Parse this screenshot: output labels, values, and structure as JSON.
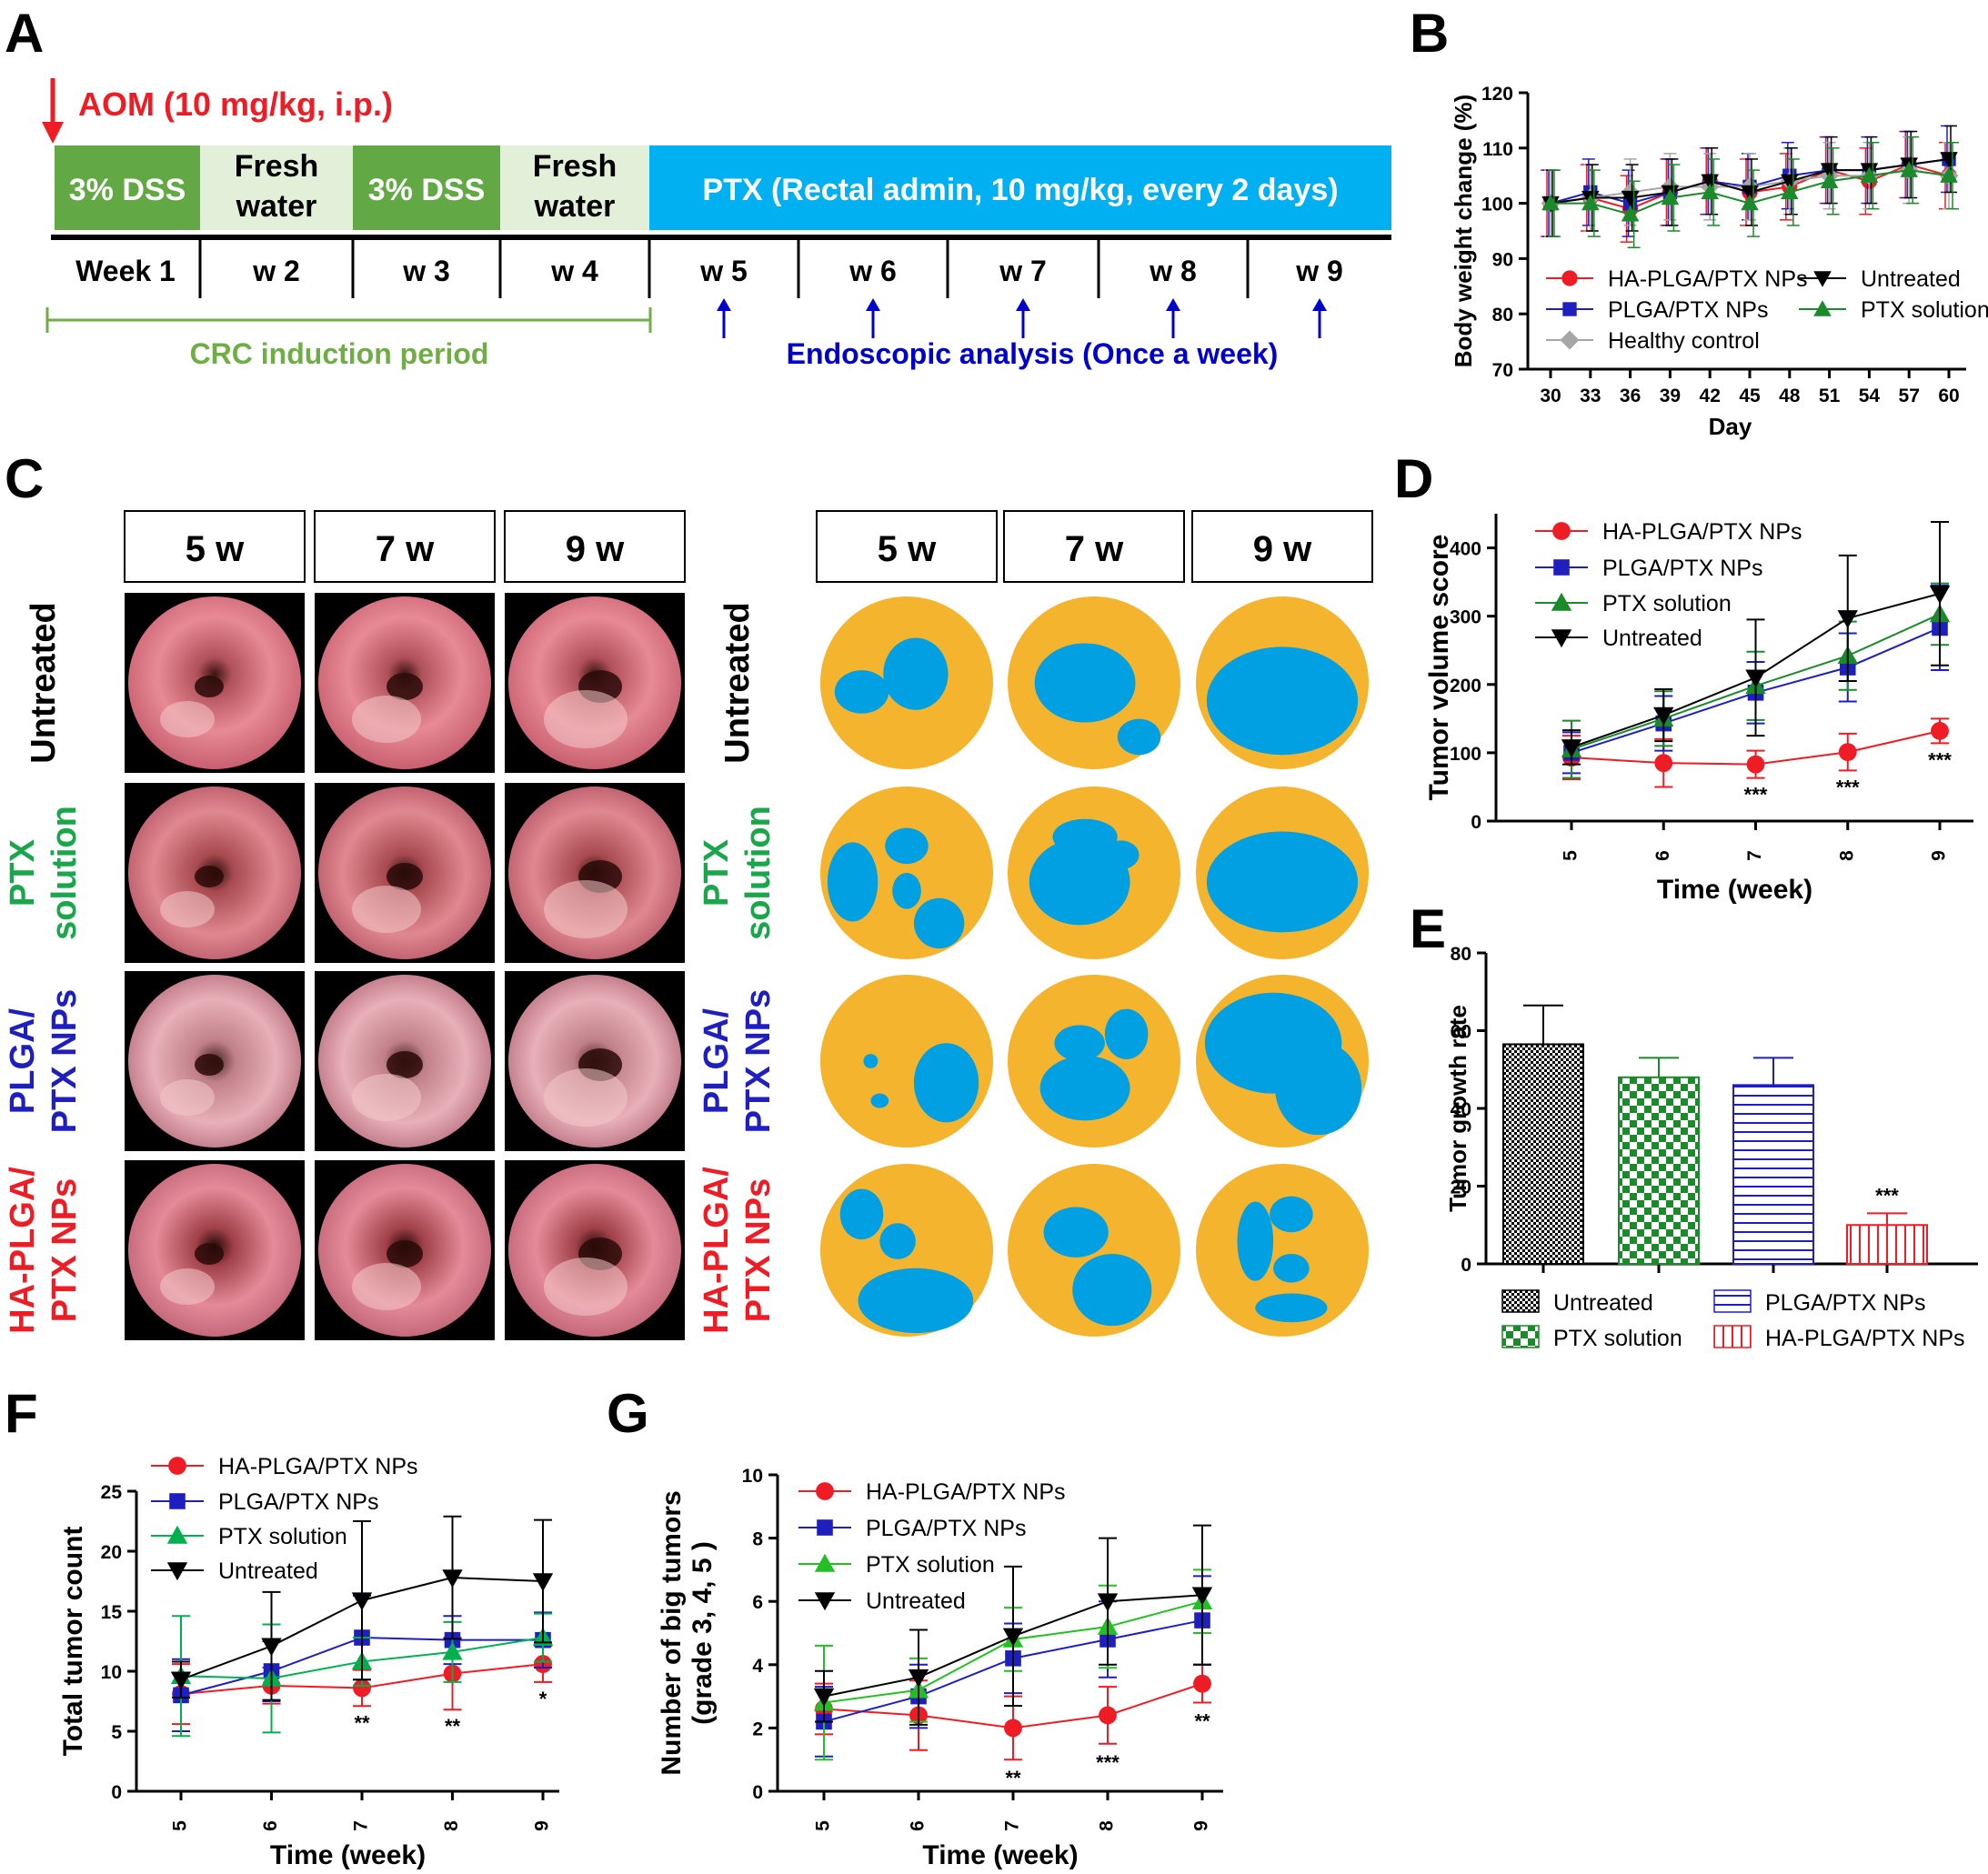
{
  "panels": {
    "A": "A",
    "B": "B",
    "C": "C",
    "D": "D",
    "E": "E",
    "F": "F",
    "G": "G"
  },
  "timeline": {
    "aom": "AOM (10 mg/kg, i.p.)",
    "bar1": "3% DSS",
    "bar2a": "Fresh",
    "bar2b": "water",
    "bar3": "3% DSS",
    "bar4a": "Fresh",
    "bar4b": "water",
    "bar5": "PTX (Rectal admin, 10 mg/kg, every 2 days)",
    "weeks": [
      "Week 1",
      "w 2",
      "w 3",
      "w 4",
      "w 5",
      "w 6",
      "w 7",
      "w 8",
      "w 9"
    ],
    "crc": "CRC induction period",
    "endo": "Endoscopic analysis (Once a week)",
    "colors": {
      "dss": "#62a844",
      "water": "#e2efd9",
      "ptx": "#00b0f0",
      "aom": "#ee1c24",
      "crc": "#70ad47",
      "endo": "#0000cc"
    }
  },
  "panel_c": {
    "time_headers": [
      "5 w",
      "7 w",
      "9 w"
    ],
    "rows": [
      {
        "lines": [
          "Untreated"
        ],
        "color": "#000000"
      },
      {
        "lines": [
          "PTX",
          "solution"
        ],
        "color": "#1aa64b"
      },
      {
        "lines": [
          "PLGA/",
          "PTX NPs"
        ],
        "color": "#1f1fbf"
      },
      {
        "lines": [
          "HA-PLGA/",
          "PTX NPs"
        ],
        "color": "#ee1c24"
      }
    ],
    "map_colors": {
      "background": "#f5b42e",
      "tumor": "#00a0e3"
    }
  },
  "chart_data": [
    {
      "id": "B",
      "type": "line",
      "xlabel": "Day",
      "ylabel": "Body weight change (%)",
      "x": [
        30,
        33,
        36,
        39,
        42,
        45,
        48,
        51,
        54,
        57,
        60
      ],
      "ylim": [
        70,
        120
      ],
      "yticks": [
        70,
        80,
        90,
        100,
        110,
        120
      ],
      "series": [
        {
          "name": "HA-PLGA/PTX NPs",
          "color": "#ee1c24",
          "marker": "circle",
          "values": [
            100,
            101,
            99,
            102,
            104,
            102,
            103,
            106,
            104,
            107,
            105
          ]
        },
        {
          "name": "PLGA/PTX NPs",
          "color": "#1f1fbf",
          "marker": "square",
          "values": [
            100,
            102,
            100,
            102,
            104,
            103,
            105,
            106,
            106,
            107,
            108
          ]
        },
        {
          "name": "Healthy control",
          "color": "#a6a6a6",
          "marker": "diamond",
          "values": [
            100,
            101,
            102,
            103,
            103,
            103,
            104,
            105,
            105,
            106,
            105
          ]
        },
        {
          "name": "Untreated",
          "color": "#000000",
          "marker": "triangle-down",
          "values": [
            100,
            101,
            101,
            102,
            104,
            102,
            104,
            106,
            106,
            107,
            108
          ]
        },
        {
          "name": "PTX solution",
          "color": "#1a8a2a",
          "marker": "triangle-up",
          "values": [
            100,
            100,
            98,
            101,
            102,
            100,
            102,
            104,
            105,
            106,
            105
          ]
        }
      ]
    },
    {
      "id": "D",
      "type": "line",
      "xlabel": "Time (week)",
      "ylabel": "Tumor volume score",
      "categories": [
        "5",
        "6",
        "7",
        "8",
        "9"
      ],
      "ylim": [
        0,
        450
      ],
      "yticks": [
        0,
        100,
        200,
        300,
        400
      ],
      "annotations": [
        {
          "at": "7",
          "text": "***"
        },
        {
          "at": "8",
          "text": "***"
        },
        {
          "at": "9",
          "text": "***"
        }
      ],
      "series": [
        {
          "name": "HA-PLGA/PTX NPs",
          "color": "#ee1c24",
          "marker": "circle",
          "values": [
            93,
            85,
            83,
            101,
            132
          ],
          "err": [
            32,
            35,
            20,
            27,
            18
          ]
        },
        {
          "name": "PLGA/PTX NPs",
          "color": "#1f1fbf",
          "marker": "square",
          "values": [
            100,
            143,
            188,
            225,
            283
          ],
          "err": [
            30,
            40,
            45,
            50,
            62
          ]
        },
        {
          "name": "PTX solution",
          "color": "#1a8a2a",
          "marker": "triangle-up",
          "values": [
            105,
            150,
            198,
            242,
            303
          ],
          "err": [
            42,
            40,
            50,
            50,
            45
          ]
        },
        {
          "name": "Untreated",
          "color": "#000000",
          "marker": "triangle-down",
          "values": [
            108,
            155,
            210,
            297,
            333
          ],
          "err": [
            25,
            38,
            85,
            92,
            105
          ]
        }
      ]
    },
    {
      "id": "E",
      "type": "bar",
      "ylabel": "Tumor growth rate",
      "categories": [
        "Untreated",
        "PTX solution",
        "PLGA/PTX NPs",
        "HA-PLGA/PTX NPs"
      ],
      "values": [
        56.5,
        48,
        46,
        10
      ],
      "err": [
        10,
        5,
        7,
        3
      ],
      "ylim": [
        0,
        80
      ],
      "yticks": [
        0,
        20,
        40,
        60,
        80
      ],
      "annotations": [
        {
          "at": "HA-PLGA/PTX NPs",
          "text": "***"
        }
      ],
      "colors": [
        "#000000",
        "#1a8a2a",
        "#1f1fbf",
        "#ee1c24"
      ],
      "patterns": [
        "checker-fine",
        "checker-green",
        "horizontal",
        "vertical"
      ]
    },
    {
      "id": "F",
      "type": "line",
      "xlabel": "Time (week)",
      "ylabel": "Total tumor count",
      "categories": [
        "5",
        "6",
        "7",
        "8",
        "9"
      ],
      "ylim": [
        0,
        25
      ],
      "yticks": [
        0,
        5,
        10,
        15,
        20,
        25
      ],
      "annotations": [
        {
          "at": "7",
          "text": "**"
        },
        {
          "at": "8",
          "text": "**"
        },
        {
          "at": "9",
          "text": "*"
        }
      ],
      "series": [
        {
          "name": "HA-PLGA/PTX NPs",
          "color": "#ee1c24",
          "marker": "circle",
          "values": [
            8.1,
            8.8,
            8.6,
            9.8,
            10.6
          ],
          "err": [
            2.5,
            1.5,
            1.5,
            3,
            1.5
          ]
        },
        {
          "name": "PLGA/PTX NPs",
          "color": "#1f1fbf",
          "marker": "square",
          "values": [
            8,
            10,
            12.8,
            12.6,
            12.6
          ],
          "err": [
            3,
            2.5,
            3.5,
            2,
            2.3
          ]
        },
        {
          "name": "PTX solution",
          "color": "#00b050",
          "marker": "triangle-up",
          "values": [
            9.6,
            9.4,
            10.8,
            11.6,
            12.8
          ],
          "err": [
            5,
            4.5,
            2,
            2.5,
            2
          ]
        },
        {
          "name": "Untreated",
          "color": "#000000",
          "marker": "triangle-down",
          "values": [
            9.3,
            12.1,
            15.9,
            17.8,
            17.5
          ],
          "err": [
            1.5,
            4.5,
            6.6,
            5.1,
            5.1
          ]
        }
      ]
    },
    {
      "id": "G",
      "type": "line",
      "xlabel": "Time (week)",
      "ylabel": "Number of big tumors (grade 3, 4, 5 )",
      "ylabel_lines": [
        "Number of big tumors",
        "(grade 3, 4, 5 )"
      ],
      "categories": [
        "5",
        "6",
        "7",
        "8",
        "9"
      ],
      "ylim": [
        0,
        10
      ],
      "yticks": [
        0,
        2,
        4,
        6,
        8,
        10
      ],
      "annotations": [
        {
          "at": "7",
          "text": "**"
        },
        {
          "at": "8",
          "text": "***"
        },
        {
          "at": "9",
          "text": "**"
        }
      ],
      "series": [
        {
          "name": "HA-PLGA/PTX NPs",
          "color": "#ee1c24",
          "marker": "circle",
          "values": [
            2.6,
            2.4,
            2,
            2.4,
            3.4
          ],
          "err": [
            0.8,
            1.1,
            1,
            0.9,
            0.6
          ]
        },
        {
          "name": "PLGA/PTX NPs",
          "color": "#1f1fbf",
          "marker": "square",
          "values": [
            2.2,
            3,
            4.2,
            4.8,
            5.4
          ],
          "err": [
            1.1,
            1,
            1.1,
            1.2,
            1.4
          ]
        },
        {
          "name": "PTX solution",
          "color": "#22c022",
          "marker": "triangle-up",
          "values": [
            2.8,
            3.2,
            4.8,
            5.2,
            6
          ],
          "err": [
            1.8,
            1,
            1,
            1.3,
            1
          ]
        },
        {
          "name": "Untreated",
          "color": "#000000",
          "marker": "triangle-down",
          "values": [
            3,
            3.6,
            4.9,
            6,
            6.2
          ],
          "err": [
            0.8,
            1.5,
            2.2,
            2,
            2.2
          ]
        }
      ]
    }
  ]
}
